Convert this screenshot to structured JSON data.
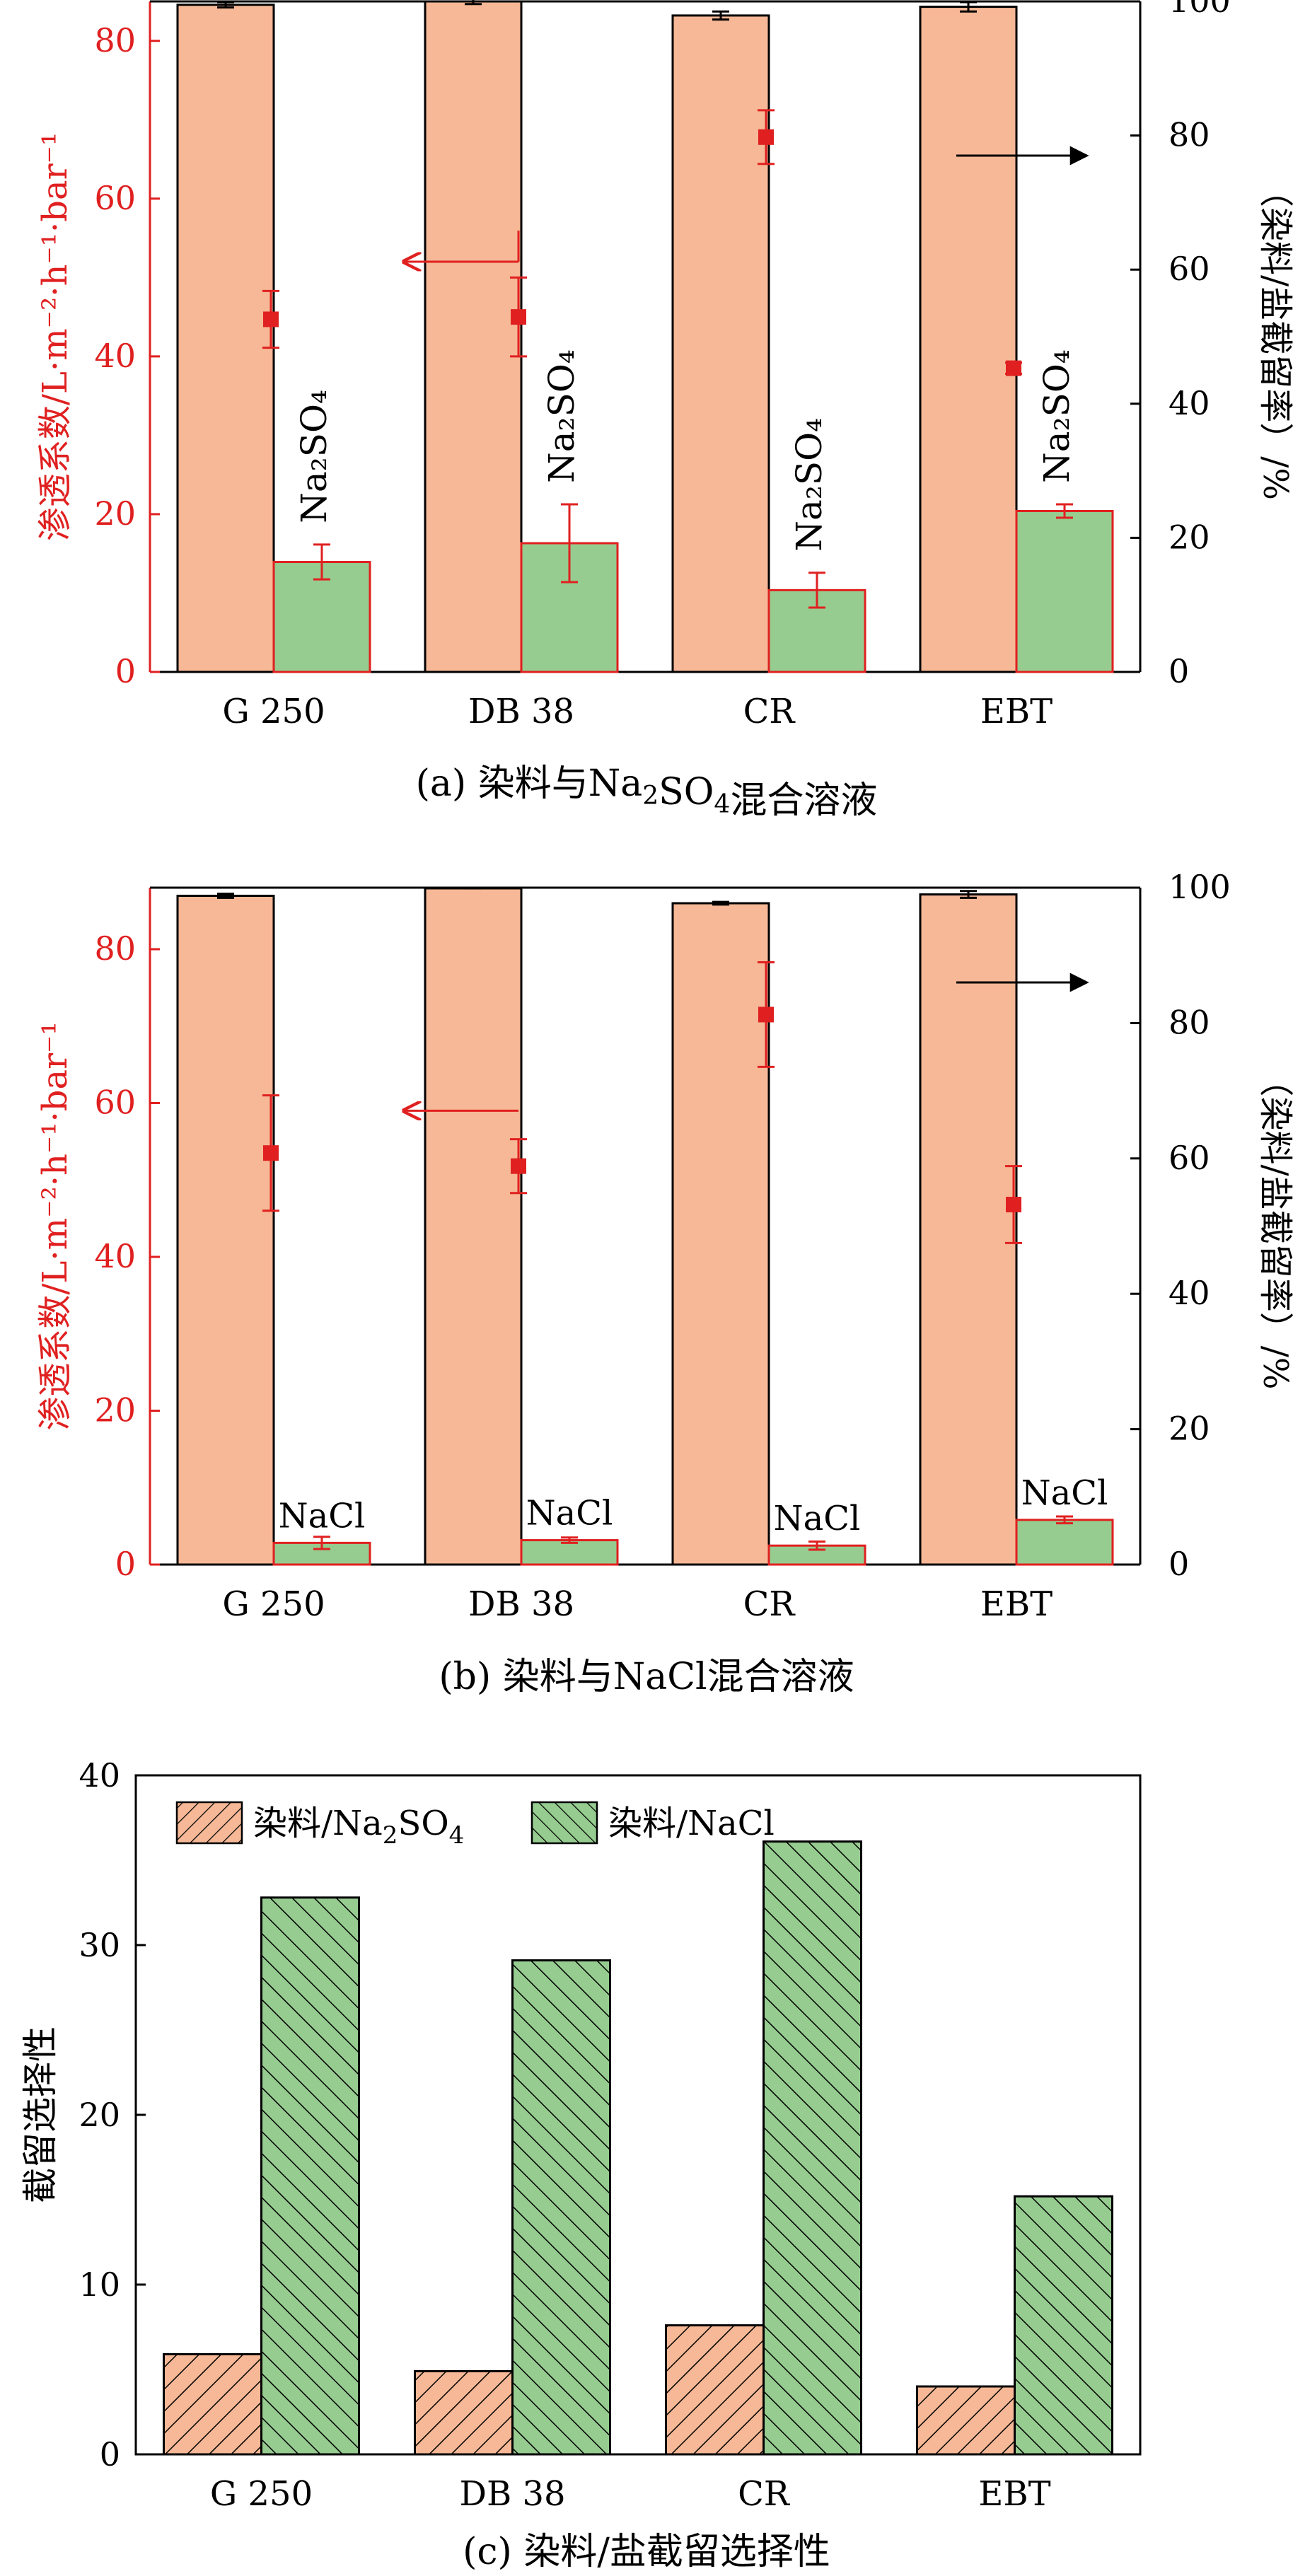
{
  "colors": {
    "dye_bar": "#F6B896",
    "salt_bar": "#96CC90",
    "red": "#E02020",
    "black": "#000000"
  },
  "chart_data": [
    {
      "id": "a",
      "type": "bar",
      "caption_text": "(a) 染料与Na",
      "caption_sub": "2",
      "caption_mid": "SO",
      "caption_sub2": "4",
      "caption_end": "混合溶液",
      "categories": [
        "G 250",
        "DB 38",
        "CR",
        "EBT"
      ],
      "ylabel_left": "渗透系数/L·m⁻²·h⁻¹·bar⁻¹",
      "ylabel_right": "（染料/盐截留率）/%",
      "ylim_left": [
        0,
        85
      ],
      "ylim_right": [
        0,
        100
      ],
      "left_ticks": [
        "0",
        "20",
        "40",
        "60",
        "80"
      ],
      "right_ticks": [
        "0",
        "20",
        "40",
        "60",
        "80",
        "100"
      ],
      "series": [
        {
          "name": "dye rejection",
          "axis": "right",
          "values": [
            99.5,
            100.0,
            97.9,
            99.2
          ],
          "errors": [
            0.4,
            0.4,
            0.6,
            0.7
          ]
        },
        {
          "name": "Na2SO4 rejection",
          "axis": "right",
          "values": [
            16.4,
            19.2,
            12.2,
            24.0
          ],
          "errors": [
            2.6,
            5.8,
            2.6,
            1.0
          ],
          "bar_label": "Na₂SO₄"
        },
        {
          "name": "permeability",
          "axis": "left",
          "marker": "square",
          "values": [
            44.7,
            45.0,
            67.8,
            38.5
          ],
          "errors": [
            3.6,
            5.0,
            3.4,
            0.7
          ]
        }
      ],
      "arrow_left_text": "",
      "arrow_right_text": ""
    },
    {
      "id": "b",
      "type": "bar",
      "caption_text": "(b) 染料与NaCl混合溶液",
      "categories": [
        "G 250",
        "DB 38",
        "CR",
        "EBT"
      ],
      "ylabel_left": "渗透系数/L·m⁻²·h⁻¹·bar⁻¹",
      "ylabel_right": "（染料/盐截留率）/%",
      "ylim_left": [
        0,
        88
      ],
      "ylim_right": [
        0,
        100
      ],
      "left_ticks": [
        "0",
        "20",
        "40",
        "60",
        "80"
      ],
      "right_ticks": [
        "0",
        "20",
        "40",
        "60",
        "80",
        "100"
      ],
      "series": [
        {
          "name": "dye rejection",
          "axis": "right",
          "values": [
            98.8,
            99.9,
            97.7,
            99.0
          ],
          "errors": [
            0.3,
            0.0,
            0.2,
            0.5
          ]
        },
        {
          "name": "NaCl rejection",
          "axis": "right",
          "values": [
            3.2,
            3.6,
            2.8,
            6.6
          ],
          "errors": [
            0.9,
            0.4,
            0.6,
            0.5
          ],
          "bar_label": "NaCl"
        },
        {
          "name": "permeability",
          "axis": "left",
          "marker": "square",
          "values": [
            53.5,
            51.8,
            71.5,
            46.8
          ],
          "errors": [
            7.5,
            3.5,
            6.8,
            5.0
          ]
        }
      ]
    },
    {
      "id": "c",
      "type": "bar",
      "caption_text": "(c) 染料/盐截留选择性",
      "categories": [
        "G 250",
        "DB 38",
        "CR",
        "EBT"
      ],
      "ylabel": "截留选择性",
      "ylim": [
        0,
        40
      ],
      "ticks": [
        "0",
        "10",
        "20",
        "30",
        "40"
      ],
      "legend_position": "top-left",
      "series": [
        {
          "name": "染料/Na₂SO₄",
          "legend_main": "染料/Na",
          "legend_sub": "2",
          "legend_mid": "SO",
          "legend_sub2": "4",
          "values": [
            5.9,
            4.9,
            7.6,
            4.0
          ]
        },
        {
          "name": "染料/NaCl",
          "values": [
            32.8,
            29.1,
            36.1,
            15.2
          ]
        }
      ]
    }
  ]
}
